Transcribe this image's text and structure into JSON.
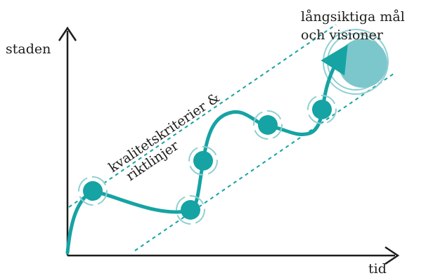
{
  "axis_y_label": "staden",
  "axis_x_label": "tid",
  "goal_label_line1": "långsiktiga mål",
  "goal_label_line2": "och visioner",
  "band_label_line1": "kvalitetskriterier &",
  "band_label_line2": "riktlinjer",
  "colors": {
    "accent": "#16a3a3",
    "goal_fill": "#7cc7cb",
    "ink": "#1d1d1b",
    "ring": "#8fcfd3"
  }
}
